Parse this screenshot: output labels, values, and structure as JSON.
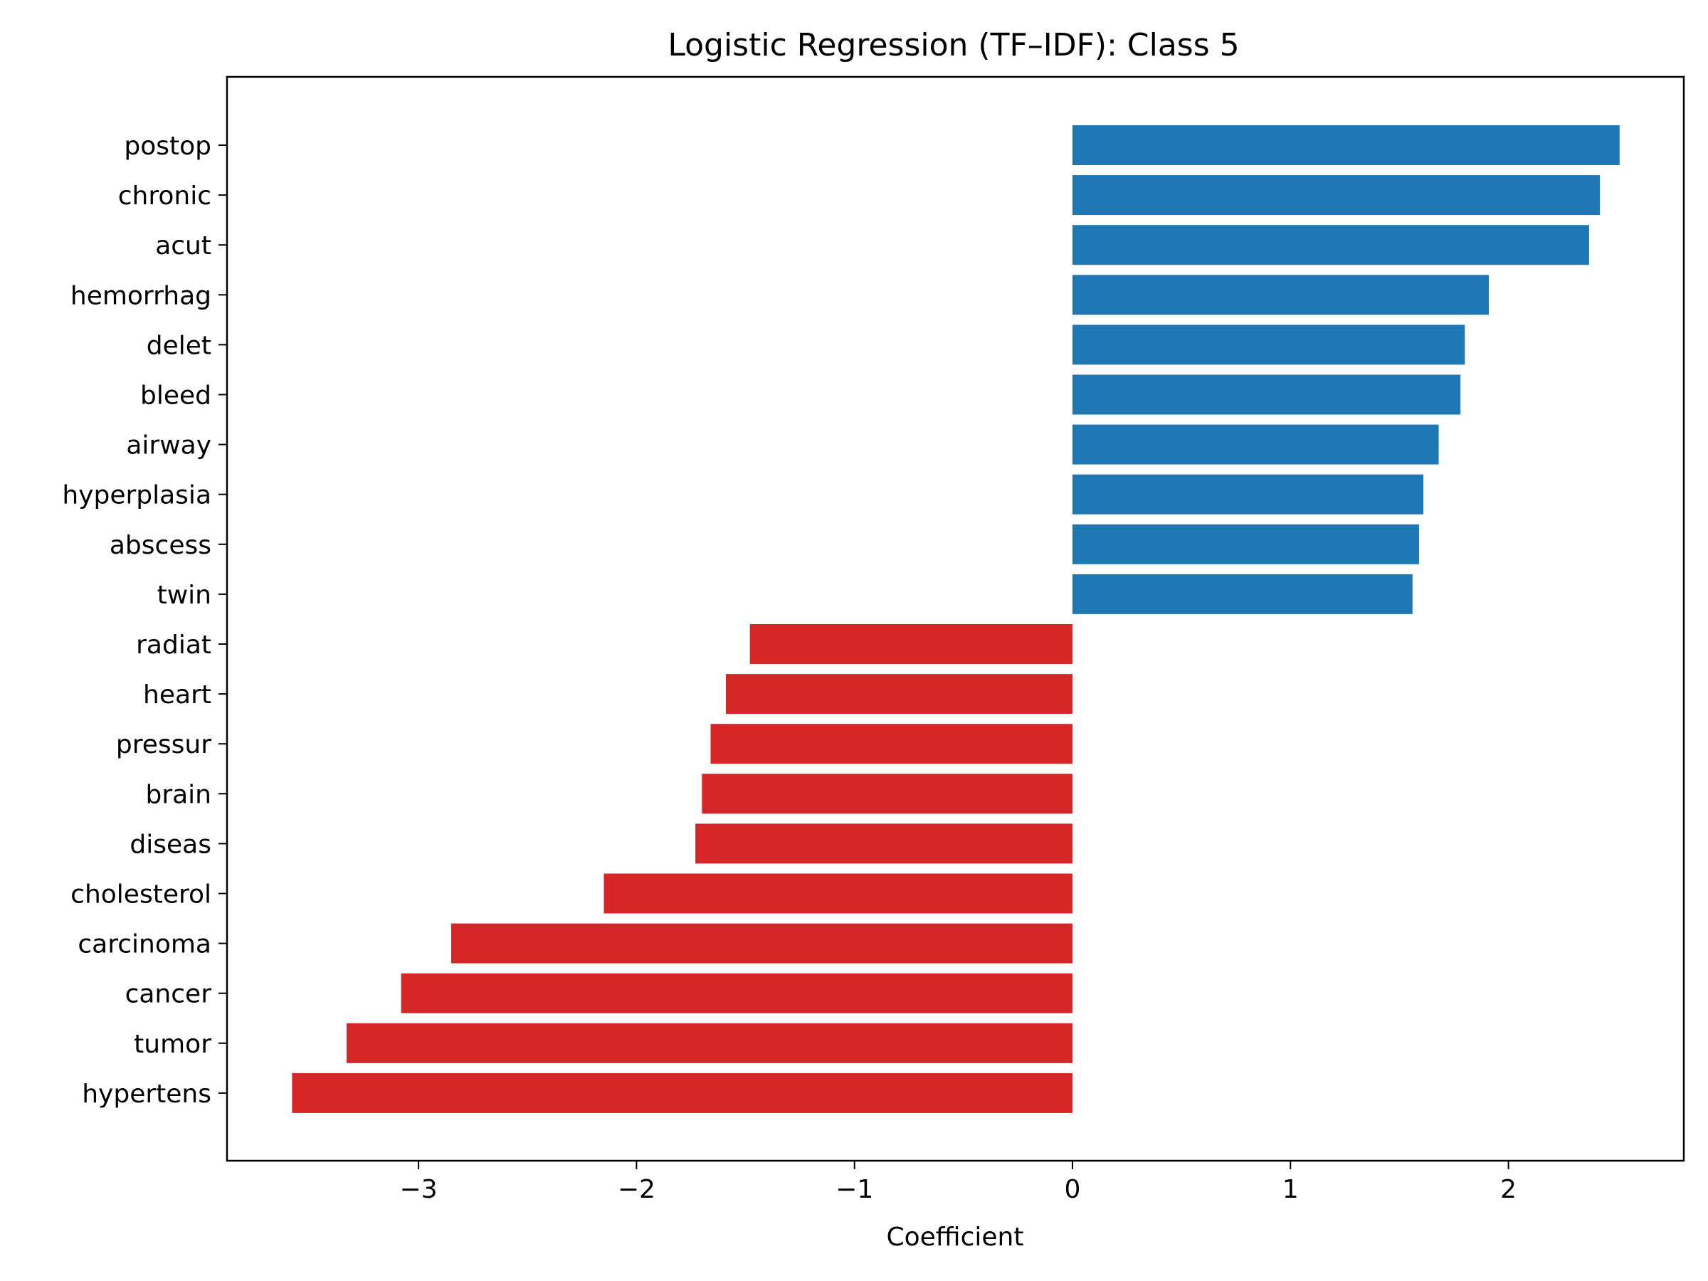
{
  "chart_data": {
    "type": "bar",
    "orientation": "horizontal",
    "title": "Logistic Regression (TF–IDF): Class 5",
    "xlabel": "Coefficient",
    "ylabel": "",
    "xlim": [
      -3.88,
      2.8
    ],
    "xticks": [
      -3,
      -2,
      -1,
      0,
      1,
      2
    ],
    "xtick_labels": [
      "−3",
      "−2",
      "−1",
      "0",
      "1",
      "2"
    ],
    "grid": false,
    "categories": [
      "postop",
      "chronic",
      "acut",
      "hemorrhag",
      "delet",
      "bleed",
      "airway",
      "hyperplasia",
      "abscess",
      "twin",
      "radiat",
      "heart",
      "pressur",
      "brain",
      "diseas",
      "cholesterol",
      "carcinoma",
      "cancer",
      "tumor",
      "hypertens"
    ],
    "values": [
      2.51,
      2.42,
      2.37,
      1.91,
      1.8,
      1.78,
      1.68,
      1.61,
      1.59,
      1.56,
      -1.48,
      -1.59,
      -1.66,
      -1.7,
      -1.73,
      -2.15,
      -2.85,
      -3.08,
      -3.33,
      -3.58
    ],
    "colors": {
      "positive": "#1f77b4",
      "negative": "#d62728"
    }
  }
}
